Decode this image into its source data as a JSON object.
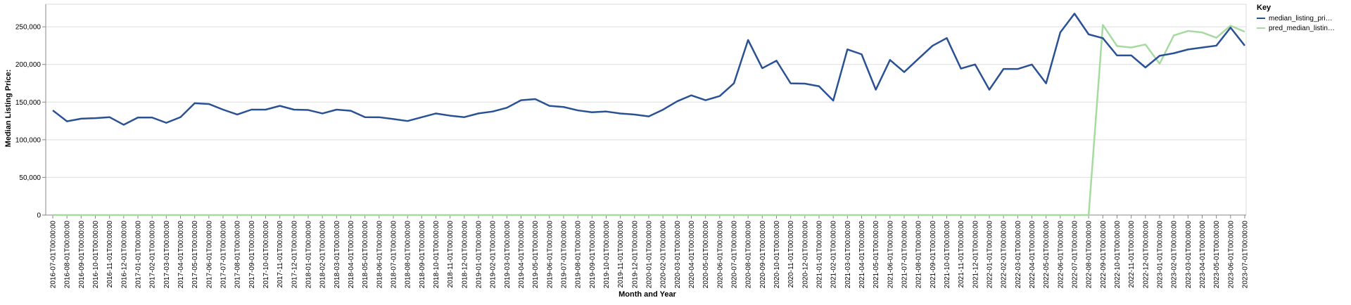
{
  "chart_data": {
    "type": "line",
    "xlabel": "Month and Year",
    "ylabel": "Median Listing Price:",
    "ylim": [
      0,
      280000
    ],
    "yticks": [
      0,
      50000,
      100000,
      150000,
      200000,
      250000
    ],
    "ytick_labels": [
      "0",
      "50,000",
      "100,000",
      "150,000",
      "200,000",
      "250,000"
    ],
    "grid": true,
    "legend": {
      "title": "Key",
      "placement": "top-right",
      "entries": [
        "median_listing_pri…",
        "pred_median_listin…"
      ]
    },
    "x": [
      "2016-07-01T00:00:00",
      "2016-08-01T00:00:00",
      "2016-09-01T00:00:00",
      "2016-10-01T00:00:00",
      "2016-11-01T00:00:00",
      "2016-12-01T00:00:00",
      "2017-01-01T00:00:00",
      "2017-02-01T00:00:00",
      "2017-03-01T00:00:00",
      "2017-04-01T00:00:00",
      "2017-05-01T00:00:00",
      "2017-06-01T00:00:00",
      "2017-07-01T00:00:00",
      "2017-08-01T00:00:00",
      "2017-09-01T00:00:00",
      "2017-10-01T00:00:00",
      "2017-11-01T00:00:00",
      "2017-12-01T00:00:00",
      "2018-01-01T00:00:00",
      "2018-02-01T00:00:00",
      "2018-03-01T00:00:00",
      "2018-04-01T00:00:00",
      "2018-05-01T00:00:00",
      "2018-06-01T00:00:00",
      "2018-07-01T00:00:00",
      "2018-08-01T00:00:00",
      "2018-09-01T00:00:00",
      "2018-10-01T00:00:00",
      "2018-11-01T00:00:00",
      "2018-12-01T00:00:00",
      "2019-01-01T00:00:00",
      "2019-02-01T00:00:00",
      "2019-03-01T00:00:00",
      "2019-04-01T00:00:00",
      "2019-05-01T00:00:00",
      "2019-06-01T00:00:00",
      "2019-07-01T00:00:00",
      "2019-08-01T00:00:00",
      "2019-09-01T00:00:00",
      "2019-10-01T00:00:00",
      "2019-11-01T00:00:00",
      "2019-12-01T00:00:00",
      "2020-01-01T00:00:00",
      "2020-02-01T00:00:00",
      "2020-03-01T00:00:00",
      "2020-04-01T00:00:00",
      "2020-05-01T00:00:00",
      "2020-06-01T00:00:00",
      "2020-07-01T00:00:00",
      "2020-08-01T00:00:00",
      "2020-09-01T00:00:00",
      "2020-10-01T00:00:00",
      "2020-11-01T00:00:00",
      "2020-12-01T00:00:00",
      "2021-01-01T00:00:00",
      "2021-02-01T00:00:00",
      "2021-03-01T00:00:00",
      "2021-04-01T00:00:00",
      "2021-05-01T00:00:00",
      "2021-06-01T00:00:00",
      "2021-07-01T00:00:00",
      "2021-08-01T00:00:00",
      "2021-09-01T00:00:00",
      "2021-10-01T00:00:00",
      "2021-11-01T00:00:00",
      "2021-12-01T00:00:00",
      "2022-01-01T00:00:00",
      "2022-02-01T00:00:00",
      "2022-03-01T00:00:00",
      "2022-04-01T00:00:00",
      "2022-05-01T00:00:00",
      "2022-06-01T00:00:00",
      "2022-07-01T00:00:00",
      "2022-08-01T00:00:00",
      "2022-09-01T00:00:00",
      "2022-10-01T00:00:00",
      "2022-11-01T00:00:00",
      "2022-12-01T00:00:00",
      "2023-01-01T00:00:00",
      "2023-02-01T00:00:00",
      "2023-03-01T00:00:00",
      "2023-04-01T00:00:00",
      "2023-05-01T00:00:00",
      "2023-06-01T00:00:00",
      "2023-07-01T00:00:00"
    ],
    "series": [
      {
        "name": "median_listing_pri…",
        "color": "#2a5193",
        "values": [
          139000,
          124500,
          128000,
          128700,
          130000,
          119900,
          129500,
          129500,
          122500,
          130000,
          148500,
          147500,
          140000,
          133500,
          140000,
          140000,
          145000,
          140000,
          139500,
          134900,
          140000,
          138500,
          130000,
          129900,
          127500,
          124900,
          129900,
          134900,
          132000,
          130000,
          135000,
          137500,
          142500,
          152500,
          154000,
          145000,
          143500,
          139000,
          136500,
          137500,
          134900,
          133500,
          131000,
          139900,
          151000,
          159000,
          152500,
          158000,
          174900,
          232500,
          195000,
          205000,
          174900,
          174500,
          171000,
          152000,
          220000,
          213500,
          166500,
          206000,
          189900,
          207500,
          224900,
          235000,
          194500,
          200000,
          166500,
          194000,
          194000,
          199900,
          174900,
          242500,
          267500,
          240000,
          234900,
          212000,
          212000,
          196000,
          211500,
          214900,
          219900,
          222500,
          225000,
          249000,
          225000
        ]
      },
      {
        "name": "pred_median_listin…",
        "color": "#a6dba0",
        "values": [
          0,
          0,
          0,
          0,
          0,
          0,
          0,
          0,
          0,
          0,
          0,
          0,
          0,
          0,
          0,
          0,
          0,
          0,
          0,
          0,
          0,
          0,
          0,
          0,
          0,
          0,
          0,
          0,
          0,
          0,
          0,
          0,
          0,
          0,
          0,
          0,
          0,
          0,
          0,
          0,
          0,
          0,
          0,
          0,
          0,
          0,
          0,
          0,
          0,
          0,
          0,
          0,
          0,
          0,
          0,
          0,
          0,
          0,
          0,
          0,
          0,
          0,
          0,
          0,
          0,
          0,
          0,
          0,
          0,
          0,
          0,
          0,
          0,
          0,
          252500,
          224500,
          222500,
          226500,
          201000,
          238500,
          244500,
          242500,
          235500,
          251500,
          243500
        ]
      }
    ]
  }
}
